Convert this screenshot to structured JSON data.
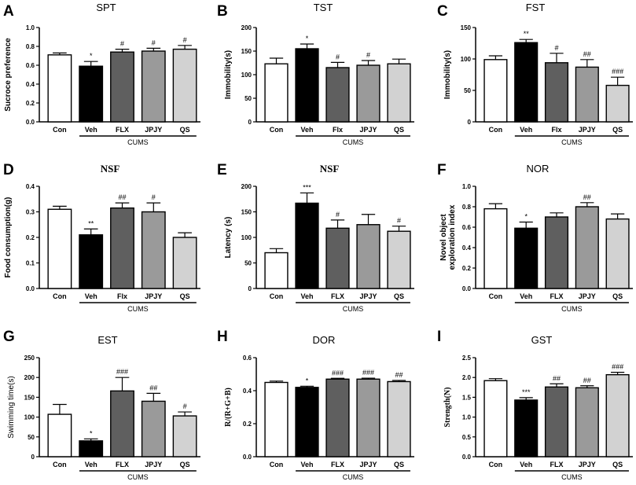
{
  "colors": {
    "Con": "#ffffff",
    "Veh": "#000000",
    "FLX": "#5f5f5f",
    "JPJY": "#9a9a9a",
    "QS": "#d2d2d2",
    "axis": "#000000"
  },
  "chart_data": [
    {
      "panel": "A",
      "type": "bar",
      "title": "SPT",
      "ylabel": "Sucroce preference",
      "categories": [
        "Con",
        "Veh",
        "FLX",
        "JPJY",
        "QS"
      ],
      "values": [
        0.71,
        0.59,
        0.74,
        0.75,
        0.77
      ],
      "errors": [
        0.02,
        0.05,
        0.03,
        0.03,
        0.04
      ],
      "significance": [
        "",
        "*",
        "#",
        "#",
        "#"
      ],
      "ylim": [
        0,
        1.0
      ],
      "yticks": [
        "0.0",
        "0.2",
        "0.4",
        "0.6",
        "0.8",
        "1.0"
      ],
      "group_label": "CUMS"
    },
    {
      "panel": "B",
      "type": "bar",
      "title": "TST",
      "ylabel": "Immobility(s)",
      "categories": [
        "Con",
        "Veh",
        "Flx",
        "JPJY",
        "QS"
      ],
      "values": [
        123,
        155,
        115,
        120,
        123
      ],
      "errors": [
        12,
        10,
        11,
        10,
        10
      ],
      "significance": [
        "",
        "*",
        "#",
        "#",
        ""
      ],
      "ylim": [
        0,
        200
      ],
      "yticks": [
        "0",
        "50",
        "100",
        "150",
        "200"
      ],
      "group_label": "CUMS"
    },
    {
      "panel": "C",
      "type": "bar",
      "title": "FST",
      "ylabel": "Immobility(s)",
      "categories": [
        "Con",
        "Veh",
        "Flx",
        "JPJY",
        "QS"
      ],
      "values": [
        99,
        126,
        94,
        87,
        58
      ],
      "errors": [
        6,
        5,
        15,
        12,
        13
      ],
      "significance": [
        "",
        "**",
        "#",
        "##",
        "###"
      ],
      "ylim": [
        0,
        150
      ],
      "yticks": [
        "0",
        "50",
        "100",
        "150"
      ],
      "group_label": "CUMS"
    },
    {
      "panel": "D",
      "type": "bar",
      "title": "NSF",
      "ylabel": "Food consumption(g)",
      "categories": [
        "Con",
        "Veh",
        "Flx",
        "JPJY",
        "QS"
      ],
      "values": [
        0.31,
        0.21,
        0.315,
        0.3,
        0.2
      ],
      "errors": [
        0.012,
        0.023,
        0.02,
        0.035,
        0.018
      ],
      "significance": [
        "",
        "**",
        "##",
        "#",
        ""
      ],
      "ylim": [
        0,
        0.4
      ],
      "yticks": [
        "0.0",
        "0.1",
        "0.2",
        "0.3",
        "0.4"
      ],
      "group_label": "CUMS"
    },
    {
      "panel": "E",
      "type": "bar",
      "title": "NSF",
      "ylabel": "Latency (s)",
      "categories": [
        "Con",
        "Veh",
        "FLX",
        "JPJY",
        "QS"
      ],
      "values": [
        70,
        167,
        118,
        125,
        112
      ],
      "errors": [
        8,
        20,
        16,
        20,
        10
      ],
      "significance": [
        "",
        "***",
        "#",
        "",
        "#"
      ],
      "ylim": [
        0,
        200
      ],
      "yticks": [
        "0",
        "50",
        "100",
        "150",
        "200"
      ],
      "group_label": "CUMS"
    },
    {
      "panel": "F",
      "type": "bar",
      "title": "NOR",
      "ylabel": [
        "Novel object",
        "exploration index"
      ],
      "categories": [
        "Con",
        "Veh",
        "FLX",
        "JPJY",
        "QS"
      ],
      "values": [
        0.78,
        0.59,
        0.7,
        0.8,
        0.68
      ],
      "errors": [
        0.05,
        0.06,
        0.04,
        0.04,
        0.05
      ],
      "significance": [
        "",
        "*",
        "",
        "##",
        ""
      ],
      "ylim": [
        0,
        1.0
      ],
      "yticks": [
        "0.0",
        "0.2",
        "0.4",
        "0.6",
        "0.8",
        "1.0"
      ],
      "group_label": "CUMS"
    },
    {
      "panel": "G",
      "type": "bar",
      "title": "EST",
      "ylabel": "Swimming time(s)",
      "categories": [
        "Con",
        "Veh",
        "FLX",
        "JPJY",
        "QS"
      ],
      "values": [
        107,
        40,
        166,
        140,
        103
      ],
      "errors": [
        25,
        5,
        34,
        20,
        10
      ],
      "significance": [
        "",
        "*",
        "###",
        "##",
        "#"
      ],
      "ylim": [
        0,
        250
      ],
      "yticks": [
        "0",
        "50",
        "100",
        "150",
        "200",
        "250"
      ],
      "group_label": "CUMS"
    },
    {
      "panel": "H",
      "type": "bar",
      "title": "DOR",
      "ylabel": "R/(R+G+B)",
      "categories": [
        "Con",
        "Veh",
        "FLX",
        "JPJY",
        "QS"
      ],
      "values": [
        0.45,
        0.42,
        0.47,
        0.47,
        0.455
      ],
      "errors": [
        0.008,
        0.007,
        0.005,
        0.006,
        0.007
      ],
      "significance": [
        "",
        "*",
        "###",
        "###",
        "##"
      ],
      "ylim": [
        0,
        0.6
      ],
      "yticks": [
        "0.0",
        "0.2",
        "0.4",
        "0.6"
      ],
      "group_label": "CUMS"
    },
    {
      "panel": "I",
      "type": "bar",
      "title": "GST",
      "ylabel": "Strength(N)",
      "categories": [
        "Con",
        "Veh",
        "FLX",
        "JPJY",
        "QS"
      ],
      "values": [
        1.92,
        1.43,
        1.76,
        1.74,
        2.07
      ],
      "errors": [
        0.05,
        0.06,
        0.08,
        0.05,
        0.06
      ],
      "significance": [
        "",
        "***",
        "##",
        "##",
        "###"
      ],
      "ylim": [
        0,
        2.5
      ],
      "yticks": [
        "0.0",
        "0.5",
        "1.0",
        "1.5",
        "2.0",
        "2.5"
      ],
      "group_label": "CUMS"
    }
  ]
}
